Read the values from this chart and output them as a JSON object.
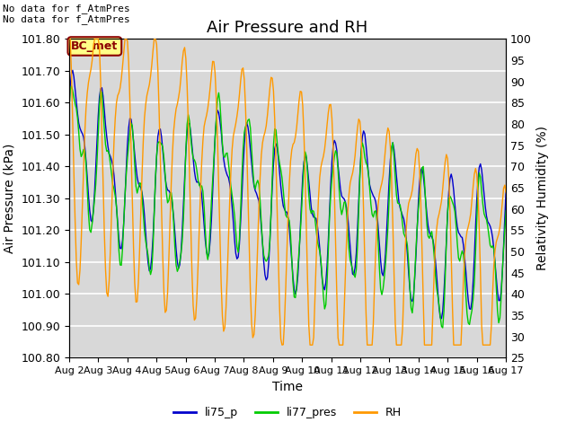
{
  "title": "Air Pressure and RH",
  "ylabel_left": "Air Pressure (kPa)",
  "ylabel_right": "Relativity Humidity (%)",
  "xlabel": "Time",
  "ylim_left": [
    100.8,
    101.8
  ],
  "ylim_right": [
    25,
    100
  ],
  "yticks_left": [
    100.8,
    100.9,
    101.0,
    101.1,
    101.2,
    101.3,
    101.4,
    101.5,
    101.6,
    101.7,
    101.8
  ],
  "yticks_right": [
    25,
    30,
    35,
    40,
    45,
    50,
    55,
    60,
    65,
    70,
    75,
    80,
    85,
    90,
    95,
    100
  ],
  "xtick_labels": [
    "Aug 2",
    "Aug 3",
    "Aug 4",
    "Aug 5",
    "Aug 6",
    "Aug 7",
    "Aug 8",
    "Aug 9",
    "Aug 10",
    "Aug 11",
    "Aug 12",
    "Aug 13",
    "Aug 14",
    "Aug 15",
    "Aug 16",
    "Aug 17"
  ],
  "no_data_text": [
    "No data for f_AtmPres",
    "No data for f_AtmPres"
  ],
  "bc_met_label": "BC_met",
  "legend_labels": [
    "li75_p",
    "li77_pres",
    "RH"
  ],
  "line_colors": [
    "#0000cc",
    "#00cc00",
    "#ff9900"
  ],
  "plot_bg_color": "#d8d8d8",
  "fig_bg_color": "#ffffff",
  "grid_color": "#ffffff",
  "title_fontsize": 13,
  "label_fontsize": 10,
  "tick_fontsize": 9,
  "n_days": 15,
  "n_points": 360
}
